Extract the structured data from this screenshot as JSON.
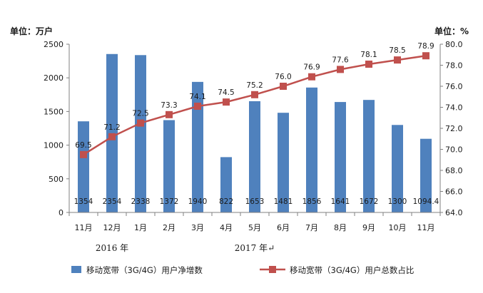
{
  "chart_data": {
    "type": "bar+line",
    "left_unit_label": "单位：万户",
    "right_unit_label": "单位：%",
    "categories": [
      "11月",
      "12月",
      "1月",
      "2月",
      "3月",
      "4月",
      "5月",
      "6月",
      "7月",
      "8月",
      "9月",
      "10月",
      "11月"
    ],
    "year_labels": [
      "2016 年",
      "2017 年↵"
    ],
    "year_label_category_index": [
      1,
      6
    ],
    "left_axis": {
      "min": 0,
      "max": 2500,
      "step": 500,
      "ticks": [
        "0",
        "500",
        "1000",
        "1500",
        "2000",
        "2500"
      ]
    },
    "right_axis": {
      "min": 64.0,
      "max": 80.0,
      "step": 2.0,
      "ticks": [
        "64.0",
        "66.0",
        "68.0",
        "70.0",
        "72.0",
        "74.0",
        "76.0",
        "78.0",
        "80.0"
      ]
    },
    "series": [
      {
        "name": "移动宽带（3G/4G）用户净增数",
        "kind": "bar",
        "axis": "left",
        "color": "#4f81bd",
        "values": [
          1354,
          2354,
          2338,
          1372,
          1940,
          822,
          1653,
          1481,
          1856,
          1641,
          1672,
          1300,
          1094.4
        ],
        "labels": [
          "1354",
          "2354",
          "2338",
          "1372",
          "1940",
          "822",
          "1653",
          "1481",
          "1856",
          "1641",
          "1672",
          "1300",
          "1094.4"
        ]
      },
      {
        "name": "移动宽带（3G/4G）用户总数占比",
        "kind": "line",
        "axis": "right",
        "color": "#c0504d",
        "values": [
          69.5,
          71.2,
          72.5,
          73.3,
          74.1,
          74.5,
          75.2,
          76.0,
          76.9,
          77.6,
          78.1,
          78.5,
          78.9
        ],
        "labels": [
          "69.5",
          "71.2",
          "72.5",
          "73.3",
          "74.1",
          "74.5",
          "75.2",
          "76.0",
          "76.9",
          "77.6",
          "78.1",
          "78.5",
          "78.9"
        ]
      }
    ],
    "grid": false,
    "legend_position": "bottom"
  }
}
